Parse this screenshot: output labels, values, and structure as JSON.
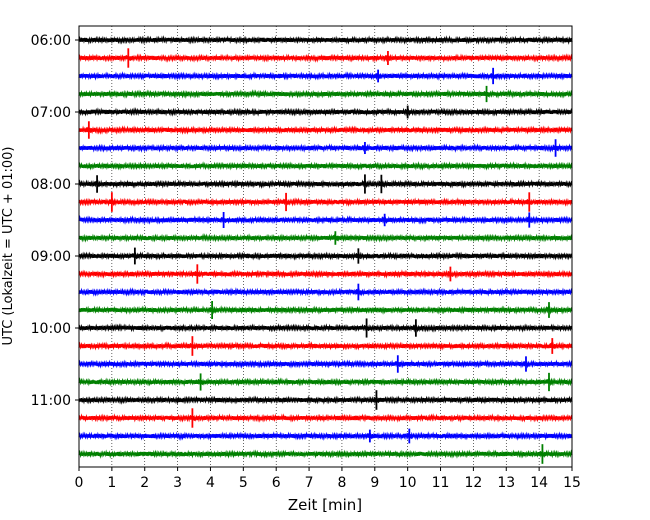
{
  "chart_data": {
    "type": "line",
    "title": "",
    "xlabel": "Zeit  [min]",
    "ylabel": "UTC (Lokalzeit = UTC + 01:00)",
    "xlim": [
      0,
      15
    ],
    "x_ticks": [
      0,
      1,
      2,
      3,
      4,
      5,
      6,
      7,
      8,
      9,
      10,
      11,
      12,
      13,
      14,
      15
    ],
    "y_tick_labels": [
      "06:00",
      "07:00",
      "08:00",
      "09:00",
      "10:00",
      "11:00"
    ],
    "grid": "vertical dotted at each minute",
    "colors": [
      "#000000",
      "#ff0000",
      "#0000ff",
      "#008000"
    ],
    "traces": [
      {
        "start": "06:00",
        "color": "#000000",
        "events": []
      },
      {
        "start": "06:15",
        "color": "#ff0000",
        "events": [
          1.5,
          9.4
        ]
      },
      {
        "start": "06:30",
        "color": "#0000ff",
        "events": [
          9.1,
          12.6
        ]
      },
      {
        "start": "06:45",
        "color": "#008000",
        "events": [
          12.4
        ]
      },
      {
        "start": "07:00",
        "color": "#000000",
        "events": [
          10.0
        ]
      },
      {
        "start": "07:15",
        "color": "#ff0000",
        "events": [
          0.3
        ]
      },
      {
        "start": "07:30",
        "color": "#0000ff",
        "events": [
          8.7,
          14.5
        ]
      },
      {
        "start": "07:45",
        "color": "#008000",
        "events": []
      },
      {
        "start": "08:00",
        "color": "#000000",
        "events": [
          0.55,
          8.7,
          9.2
        ]
      },
      {
        "start": "08:15",
        "color": "#ff0000",
        "events": [
          1.0,
          6.3,
          13.7
        ]
      },
      {
        "start": "08:30",
        "color": "#0000ff",
        "events": [
          4.4,
          9.3,
          13.7
        ]
      },
      {
        "start": "08:45",
        "color": "#008000",
        "events": [
          7.8
        ]
      },
      {
        "start": "09:00",
        "color": "#000000",
        "events": [
          1.7,
          8.5
        ]
      },
      {
        "start": "09:15",
        "color": "#ff0000",
        "events": [
          3.6,
          11.3
        ]
      },
      {
        "start": "09:30",
        "color": "#0000ff",
        "events": [
          8.5
        ]
      },
      {
        "start": "09:45",
        "color": "#008000",
        "events": [
          4.05,
          14.3
        ]
      },
      {
        "start": "10:00",
        "color": "#000000",
        "events": [
          8.75,
          10.25
        ]
      },
      {
        "start": "10:15",
        "color": "#ff0000",
        "events": [
          3.45,
          14.4
        ]
      },
      {
        "start": "10:30",
        "color": "#0000ff",
        "events": [
          9.7,
          13.6
        ]
      },
      {
        "start": "10:45",
        "color": "#008000",
        "events": [
          3.7,
          14.3
        ]
      },
      {
        "start": "11:00",
        "color": "#000000",
        "events": [
          9.05
        ]
      },
      {
        "start": "11:15",
        "color": "#ff0000",
        "events": [
          3.45
        ]
      },
      {
        "start": "11:30",
        "color": "#0000ff",
        "events": [
          8.85,
          10.05
        ]
      },
      {
        "start": "11:45",
        "color": "#008000",
        "events": [
          14.1
        ]
      }
    ]
  }
}
